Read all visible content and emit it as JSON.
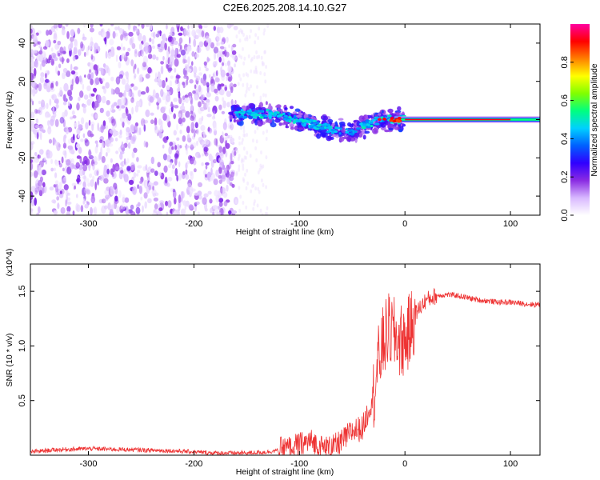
{
  "title": "C2E6.2025.208.14.10.G27",
  "chart_data": [
    {
      "type": "heatmap",
      "xlabel": "Height of straight line (km)",
      "ylabel": "Frequency (Hz)",
      "xlim": [
        -355,
        128
      ],
      "ylim": [
        -50,
        50
      ],
      "xticks": [
        "-300",
        "-200",
        "-100",
        "0",
        "100"
      ],
      "yticks": [
        "-40",
        "-20",
        "0",
        "20",
        "40"
      ],
      "xtick_values": [
        -300,
        -200,
        -100,
        0,
        100
      ],
      "ytick_values": [
        -40,
        -20,
        0,
        20,
        40
      ],
      "colorbar": {
        "label": "Normalized spectral amplitude",
        "range": [
          0,
          1
        ],
        "ticks": [
          "0.0",
          "0.2",
          "0.4",
          "0.6",
          "0.8"
        ],
        "tick_values": [
          0.0,
          0.2,
          0.4,
          0.6,
          0.8
        ],
        "colormap": [
          "#ffffff",
          "#d8b8ff",
          "#8a2be2",
          "#3000ff",
          "#0060ff",
          "#00d0ff",
          "#00ff80",
          "#80ff00",
          "#ffff00",
          "#ff8000",
          "#ff0000",
          "#ff00a0"
        ]
      },
      "ridge": [
        {
          "x": -160,
          "y": 3
        },
        {
          "x": -130,
          "y": 3
        },
        {
          "x": -110,
          "y": 1
        },
        {
          "x": -90,
          "y": -2
        },
        {
          "x": -70,
          "y": -5
        },
        {
          "x": -50,
          "y": -6
        },
        {
          "x": -35,
          "y": -2
        },
        {
          "x": -20,
          "y": 0
        },
        {
          "x": 0,
          "y": 0
        },
        {
          "x": 128,
          "y": 0
        }
      ],
      "noise_region_x": [
        -355,
        -160
      ]
    },
    {
      "type": "line",
      "xlabel": "Height of straight line (km)",
      "ylabel": "SNR (10 * v/v)",
      "multiplier_label": "(x10^4)",
      "xlim": [
        -355,
        128
      ],
      "ylim": [
        0,
        1.75
      ],
      "xticks": [
        "-300",
        "-200",
        "-100",
        "0",
        "100"
      ],
      "yticks": [
        "0.5",
        "1.0",
        "1.5"
      ],
      "xtick_values": [
        -300,
        -200,
        -100,
        0,
        100
      ],
      "ytick_values": [
        0.5,
        1.0,
        1.5
      ],
      "series": [
        {
          "color": "#ee3333",
          "x": [
            -355,
            -330,
            -300,
            -260,
            -220,
            -180,
            -150,
            -130,
            -110,
            -100,
            -90,
            -80,
            -70,
            -60,
            -50,
            -40,
            -30,
            -25,
            -20,
            -15,
            -10,
            -5,
            0,
            5,
            10,
            20,
            30,
            40,
            50,
            60,
            70,
            80,
            90,
            100,
            110,
            120,
            128
          ],
          "y": [
            0.03,
            0.05,
            0.06,
            0.05,
            0.04,
            0.02,
            0.02,
            0.03,
            0.06,
            0.09,
            0.13,
            0.07,
            0.06,
            0.12,
            0.22,
            0.25,
            0.55,
            0.85,
            1.05,
            1.15,
            1.1,
            1.05,
            1.05,
            1.15,
            1.3,
            1.42,
            1.46,
            1.47,
            1.46,
            1.44,
            1.42,
            1.41,
            1.4,
            1.4,
            1.39,
            1.38,
            1.38
          ]
        }
      ]
    }
  ]
}
